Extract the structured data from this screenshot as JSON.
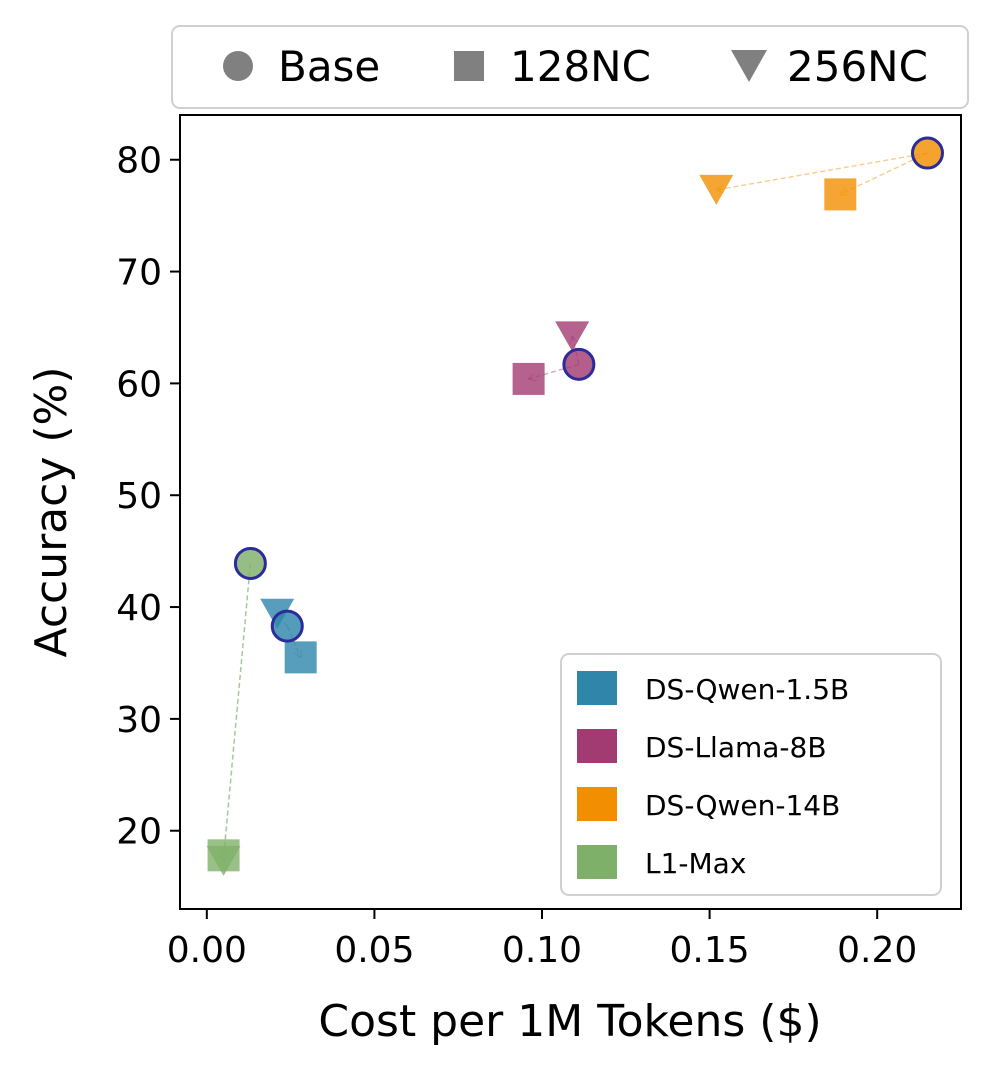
{
  "chart_data": {
    "type": "scatter",
    "xlabel": "Cost per 1M Tokens ($)",
    "ylabel": "Accuracy (%)",
    "xlim": [
      -0.008,
      0.225
    ],
    "ylim": [
      13,
      84
    ],
    "xticks": [
      0.0,
      0.05,
      0.1,
      0.15,
      0.2
    ],
    "xtick_labels": [
      "0.00",
      "0.05",
      "0.10",
      "0.15",
      "0.20"
    ],
    "yticks": [
      20,
      30,
      40,
      50,
      60,
      70,
      80
    ],
    "ytick_labels": [
      "20",
      "30",
      "40",
      "50",
      "60",
      "70",
      "80"
    ],
    "grid": false,
    "marker_legend": {
      "placement": "top-outside",
      "entries": [
        {
          "marker": "circle",
          "label": "Base"
        },
        {
          "marker": "square",
          "label": "128NC"
        },
        {
          "marker": "triangle-down",
          "label": "256NC"
        }
      ]
    },
    "model_legend": {
      "placement": "lower-right",
      "entries": [
        {
          "label": "DS-Qwen-1.5B",
          "color": "#2E86AB"
        },
        {
          "label": "DS-Llama-8B",
          "color": "#A23B72"
        },
        {
          "label": "DS-Qwen-14B",
          "color": "#F18F01"
        },
        {
          "label": "L1-Max",
          "color": "#7FB069"
        }
      ]
    },
    "series": [
      {
        "name": "DS-Qwen-1.5B",
        "color": "#2E86AB",
        "points": [
          {
            "variant": "Base",
            "x": 0.024,
            "y": 38.3
          },
          {
            "variant": "128NC",
            "x": 0.028,
            "y": 35.5
          },
          {
            "variant": "256NC",
            "x": 0.021,
            "y": 39.4
          }
        ]
      },
      {
        "name": "DS-Llama-8B",
        "color": "#A23B72",
        "points": [
          {
            "variant": "Base",
            "x": 0.111,
            "y": 61.7
          },
          {
            "variant": "128NC",
            "x": 0.096,
            "y": 60.4
          },
          {
            "variant": "256NC",
            "x": 0.109,
            "y": 64.2
          }
        ]
      },
      {
        "name": "DS-Qwen-14B",
        "color": "#F18F01",
        "points": [
          {
            "variant": "Base",
            "x": 0.215,
            "y": 80.6
          },
          {
            "variant": "128NC",
            "x": 0.189,
            "y": 76.9
          },
          {
            "variant": "256NC",
            "x": 0.152,
            "y": 77.3
          }
        ]
      },
      {
        "name": "L1-Max",
        "color": "#7FB069",
        "points": [
          {
            "variant": "Base",
            "x": 0.013,
            "y": 43.9
          },
          {
            "variant": "128NC",
            "x": 0.005,
            "y": 17.8
          },
          {
            "variant": "256NC",
            "x": 0.005,
            "y": 17.3
          }
        ]
      }
    ]
  }
}
